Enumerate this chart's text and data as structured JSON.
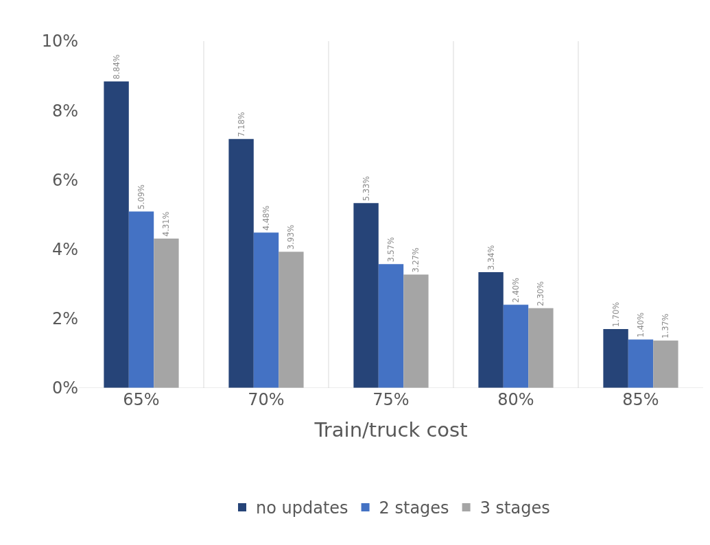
{
  "chart_data": {
    "type": "bar",
    "xlabel": "Train/truck cost",
    "categories": [
      "65%",
      "70%",
      "75%",
      "80%",
      "85%"
    ],
    "series": [
      {
        "name": "no updates",
        "color": "#264478",
        "values": [
          8.84,
          7.18,
          5.33,
          3.34,
          1.7
        ],
        "value_labels": [
          "8.84%",
          "7.18%",
          "5.33%",
          "3.34%",
          "1.70%"
        ]
      },
      {
        "name": "2 stages",
        "color": "#4472c4",
        "values": [
          5.09,
          4.48,
          3.57,
          2.4,
          1.4
        ],
        "value_labels": [
          "5.09%",
          "4.48%",
          "3.57%",
          "2.40%",
          "1.40%"
        ]
      },
      {
        "name": "3 stages",
        "color": "#a5a5a5",
        "values": [
          4.31,
          3.93,
          3.27,
          2.3,
          1.37
        ],
        "value_labels": [
          "4.31%",
          "3.93%",
          "3.27%",
          "2.30%",
          "1.37%"
        ]
      }
    ],
    "ylim": [
      0,
      10
    ],
    "yticks": [
      {
        "value": 0,
        "label": "0%"
      },
      {
        "value": 2,
        "label": "2%"
      },
      {
        "value": 4,
        "label": "4%"
      },
      {
        "value": 6,
        "label": "6%"
      },
      {
        "value": 8,
        "label": "8%"
      },
      {
        "value": 10,
        "label": "10%"
      }
    ],
    "grid": "x",
    "legend": "bottom"
  }
}
